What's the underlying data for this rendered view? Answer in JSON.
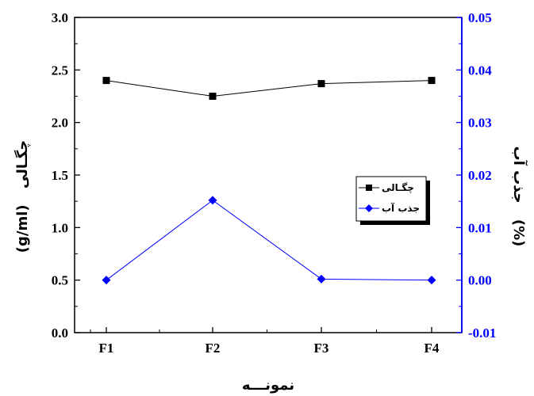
{
  "chart_data": {
    "type": "line",
    "categories": [
      "F1",
      "F2",
      "F3",
      "F4"
    ],
    "xlabel": "نمونـــه",
    "ylabel_left": {
      "persian": "چگـالی",
      "unit": "(g/ml)"
    },
    "ylabel_right": {
      "persian": "جذب آب",
      "unit": "(%)"
    },
    "ylim_left": [
      0.0,
      3.0
    ],
    "ylim_right": [
      -0.01,
      0.05
    ],
    "yticks_left": [
      "0.0",
      "0.5",
      "1.0",
      "1.5",
      "2.0",
      "2.5",
      "3.0"
    ],
    "yticks_right": [
      "-0.01",
      "0.00",
      "0.01",
      "0.02",
      "0.03",
      "0.04",
      "0.05"
    ],
    "grid": false,
    "legend_position": "right-middle",
    "series": [
      {
        "name": "چگـالی",
        "axis": "left",
        "marker": "square",
        "color": "#000000",
        "values": [
          2.4,
          2.25,
          2.37,
          2.4
        ]
      },
      {
        "name": "جذب آب",
        "axis": "right",
        "marker": "diamond",
        "color": "#0000ff",
        "values": [
          0.0,
          0.0152,
          0.0002,
          0.0
        ]
      }
    ],
    "right_axis_color": "#0000ff"
  }
}
